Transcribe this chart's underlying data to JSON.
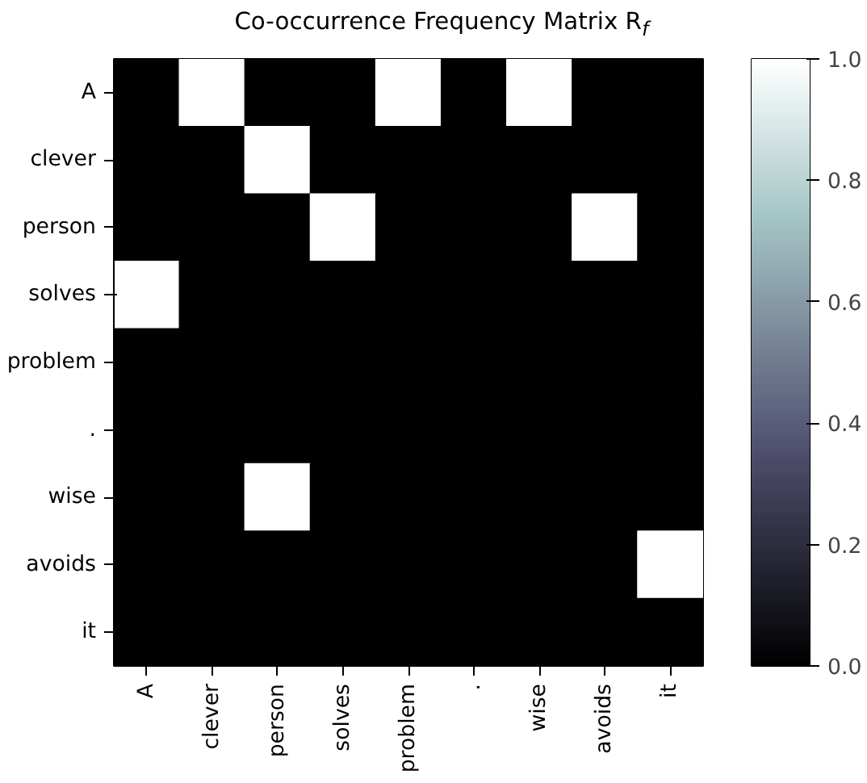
{
  "chart_data": {
    "type": "heatmap",
    "title": "Co-occurrence Frequency Matrix R$_{f}$",
    "categories": [
      "A",
      "clever",
      "person",
      "solves",
      "problem",
      ".",
      "wise",
      "avoids",
      "it"
    ],
    "y_categories": [
      "A",
      "clever",
      "person",
      "solves",
      "problem",
      ".",
      "wise",
      "avoids",
      "it"
    ],
    "cells": [
      [
        0,
        1,
        0,
        0,
        1,
        0,
        1,
        0,
        0
      ],
      [
        0,
        0,
        1,
        0,
        0,
        0,
        0,
        0,
        0
      ],
      [
        0,
        0,
        0,
        1,
        0,
        0,
        0,
        1,
        0
      ],
      [
        1,
        0,
        0,
        0,
        0,
        0,
        0,
        0,
        0
      ],
      [
        0,
        0,
        0,
        0,
        0,
        0,
        0,
        0,
        0
      ],
      [
        0,
        0,
        0,
        0,
        0,
        0,
        0,
        0,
        0
      ],
      [
        0,
        0,
        1,
        0,
        0,
        0,
        0,
        0,
        0
      ],
      [
        0,
        0,
        0,
        0,
        0,
        0,
        0,
        0,
        1
      ],
      [
        0,
        0,
        0,
        0,
        0,
        0,
        0,
        0,
        0
      ]
    ],
    "clim": [
      0,
      1
    ],
    "cticks": [
      {
        "value": 0,
        "label": "0.0"
      },
      0.2,
      0.4,
      0.6,
      0.8,
      {
        "value": 1,
        "label": "1.0"
      }
    ]
  }
}
